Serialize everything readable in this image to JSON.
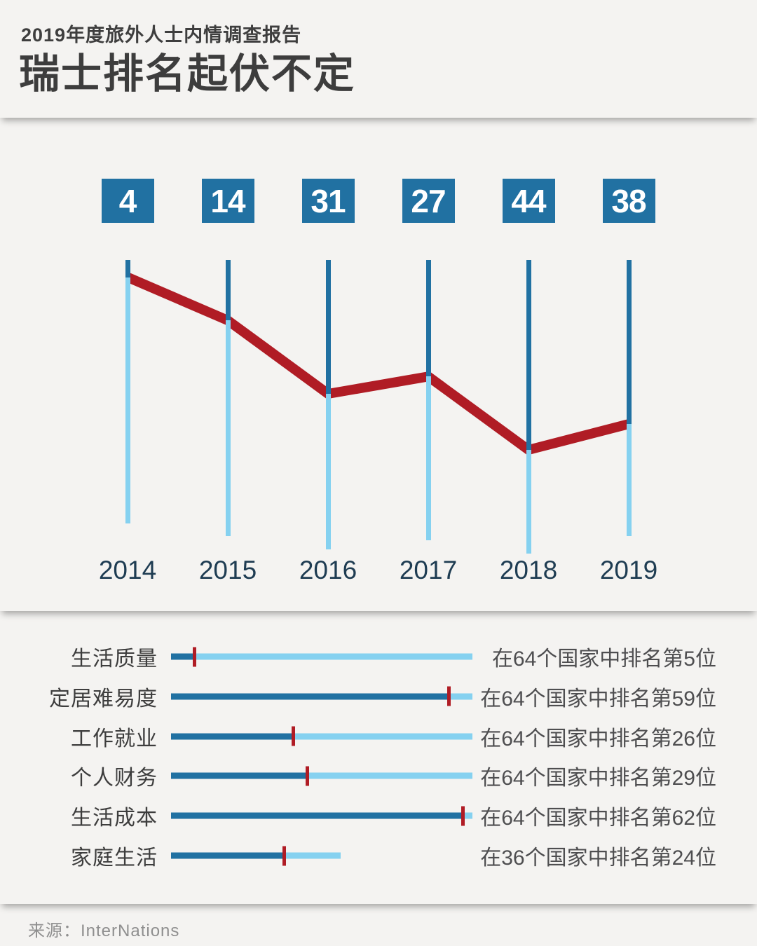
{
  "header": {
    "subtitle": "2019年度旅外人士内情调查报告",
    "title": "瑞士排名起伏不定"
  },
  "chart_data": {
    "type": "line",
    "title": "瑞士排名起伏不定",
    "subtitle": "2019年度旅外人士内情调查报告",
    "x": [
      "2014",
      "2015",
      "2016",
      "2017",
      "2018",
      "2019"
    ],
    "series": [
      {
        "name": "rank_by_year",
        "values": [
          4,
          14,
          31,
          27,
          44,
          38
        ]
      },
      {
        "name": "countries_total_by_year",
        "values": [
          61,
          64,
          67,
          65,
          68,
          64
        ]
      }
    ],
    "y_axis": {
      "inverted": true,
      "range": [
        0,
        68
      ]
    },
    "legend": "none",
    "grid": false,
    "colors": {
      "rank_box": "#2171a2",
      "line_above_rank": "#2171a2",
      "line_below_rank": "#85d1f0",
      "trend_line": "#b01c25"
    }
  },
  "rankings": {
    "scale_max": 64,
    "rows": [
      {
        "label": "生活质量",
        "rank": 5,
        "total": 64,
        "text": "在64个国家中排名第5位"
      },
      {
        "label": "定居难易度",
        "rank": 59,
        "total": 64,
        "text": "在64个国家中排名第59位"
      },
      {
        "label": "工作就业",
        "rank": 26,
        "total": 64,
        "text": "在64个国家中排名第26位"
      },
      {
        "label": "个人财务",
        "rank": 29,
        "total": 64,
        "text": "在64个国家中排名第29位"
      },
      {
        "label": "生活成本",
        "rank": 62,
        "total": 64,
        "text": "在64个国家中排名第62位"
      },
      {
        "label": "家庭生活",
        "rank": 24,
        "total": 36,
        "text": "在36个国家中排名第24位"
      }
    ]
  },
  "footer": {
    "source": "来源：InterNations"
  }
}
